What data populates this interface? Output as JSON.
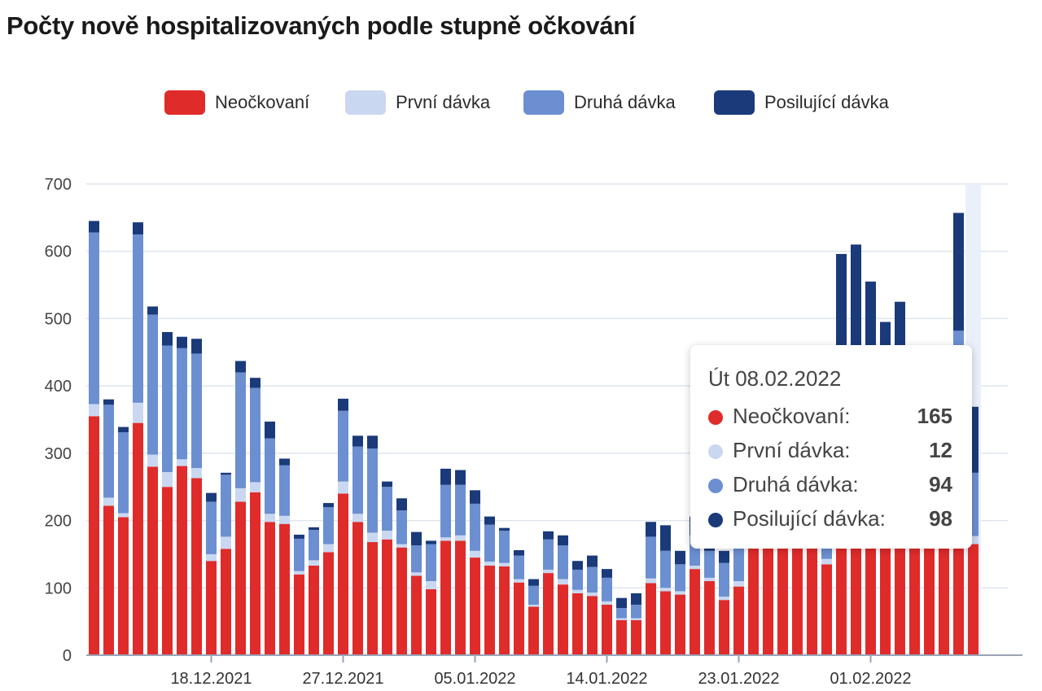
{
  "title": "Počty nově hospitalizovaných podle stupně očkování",
  "colors": {
    "unvaccinated": "#e02b2b",
    "first_dose": "#c9d8f0",
    "second_dose": "#6b8fd1",
    "booster": "#1a3a7a",
    "grid": "#dfe4ee",
    "axis": "#9aa3b5",
    "highlight": "#eaf0fb"
  },
  "legend": [
    {
      "label": "Neočkovaní",
      "color": "#e02b2b"
    },
    {
      "label": "První dávka",
      "color": "#c9d8f0"
    },
    {
      "label": "Druhá dávka",
      "color": "#6b8fd1"
    },
    {
      "label": "Posilující dávka",
      "color": "#1a3a7a"
    }
  ],
  "tooltip": {
    "date": "Út 08.02.2022",
    "rows": [
      {
        "label": "Neočkovaní:",
        "value": "165",
        "color": "#e02b2b"
      },
      {
        "label": "První dávka:",
        "value": "12",
        "color": "#c9d8f0"
      },
      {
        "label": "Druhá dávka:",
        "value": "94",
        "color": "#6b8fd1"
      },
      {
        "label": "Posilující dávka:",
        "value": "98",
        "color": "#1a3a7a"
      }
    ]
  },
  "chart_data": {
    "type": "bar",
    "stacked": true,
    "title": "Počty nově hospitalizovaných podle stupně očkování",
    "ylim": [
      0,
      700
    ],
    "yticks": [
      0,
      100,
      200,
      300,
      400,
      500,
      600,
      700
    ],
    "x_tick_labels": [
      "18.12.2021",
      "27.12.2021",
      "05.01.2022",
      "14.01.2022",
      "23.01.2022",
      "01.02.2022"
    ],
    "x_tick_indices": [
      8,
      17,
      26,
      35,
      44,
      53
    ],
    "legend_position": "top-center",
    "grid": true,
    "highlighted_index": 60,
    "series": [
      {
        "name": "Neočkovaní",
        "values": [
          355,
          222,
          205,
          345,
          280,
          250,
          281,
          263,
          140,
          158,
          228,
          242,
          198,
          195,
          120,
          133,
          153,
          240,
          198,
          168,
          172,
          160,
          118,
          98,
          170,
          170,
          145,
          133,
          132,
          108,
          72,
          122,
          105,
          92,
          88,
          75,
          52,
          52,
          107,
          95,
          90,
          128,
          110,
          82,
          102,
          170,
          170,
          170,
          170,
          170,
          135,
          165,
          175,
          175,
          175,
          175,
          175,
          175,
          175,
          307,
          165
        ]
      },
      {
        "name": "První dávka",
        "values": [
          18,
          12,
          6,
          30,
          18,
          22,
          10,
          15,
          10,
          18,
          20,
          15,
          12,
          12,
          5,
          8,
          12,
          18,
          12,
          14,
          13,
          5,
          5,
          12,
          5,
          8,
          10,
          6,
          5,
          5,
          3,
          5,
          8,
          5,
          5,
          5,
          3,
          3,
          7,
          5,
          5,
          5,
          5,
          5,
          8,
          5,
          5,
          5,
          5,
          5,
          8,
          6,
          5,
          5,
          5,
          5,
          5,
          5,
          5,
          10,
          12
        ]
      },
      {
        "name": "Druhá dávka",
        "values": [
          255,
          138,
          120,
          250,
          208,
          188,
          165,
          170,
          78,
          92,
          172,
          140,
          112,
          75,
          48,
          45,
          55,
          105,
          100,
          125,
          65,
          50,
          40,
          55,
          78,
          75,
          70,
          55,
          48,
          35,
          28,
          45,
          50,
          30,
          38,
          35,
          15,
          20,
          62,
          55,
          40,
          45,
          40,
          50,
          55,
          50,
          50,
          50,
          50,
          50,
          60,
          55,
          45,
          45,
          40,
          40,
          40,
          40,
          40,
          165,
          94
        ]
      },
      {
        "name": "Posilující dávka",
        "values": [
          17,
          8,
          8,
          18,
          12,
          20,
          17,
          22,
          13,
          3,
          17,
          15,
          25,
          10,
          6,
          4,
          6,
          18,
          16,
          19,
          8,
          18,
          20,
          5,
          24,
          22,
          20,
          12,
          4,
          8,
          10,
          12,
          15,
          13,
          17,
          13,
          15,
          17,
          22,
          38,
          20,
          28,
          20,
          18,
          20,
          40,
          50,
          50,
          50,
          50,
          60,
          370,
          385,
          330,
          275,
          305,
          60,
          50,
          110,
          175,
          98
        ]
      }
    ]
  }
}
